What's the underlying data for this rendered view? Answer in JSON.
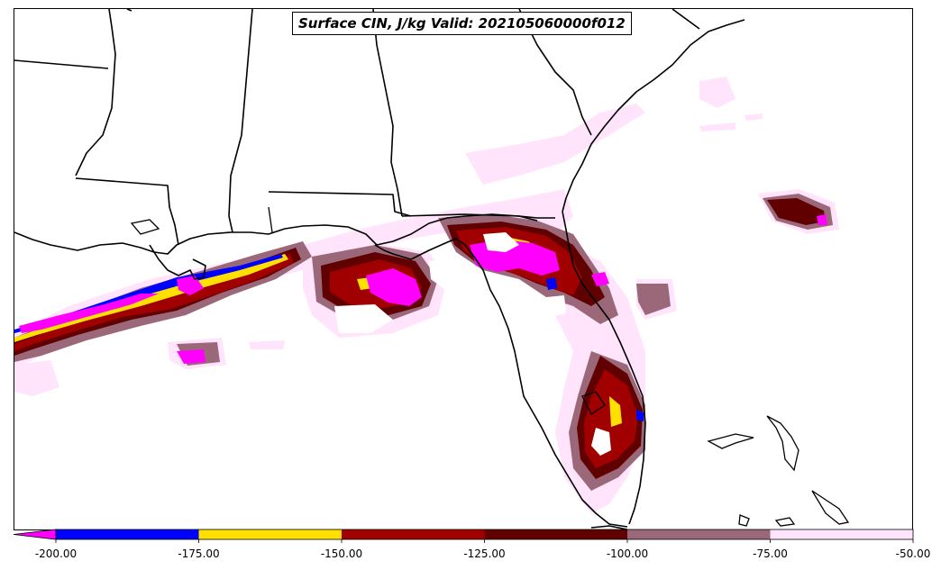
{
  "title": "Surface CIN, J/kg Valid: 202105060000f012",
  "colorbar": {
    "extend": "min",
    "extend_color": "#ff00ff",
    "bands": [
      {
        "from": -200,
        "to": -175,
        "color": "#0000ff"
      },
      {
        "from": -175,
        "to": -150,
        "color": "#ffe000"
      },
      {
        "from": -150,
        "to": -125,
        "color": "#a00000"
      },
      {
        "from": -125,
        "to": -100,
        "color": "#600000"
      },
      {
        "from": -100,
        "to": -75,
        "color": "#9a6878"
      },
      {
        "from": -75,
        "to": -50,
        "color": "#ffe4fb"
      }
    ],
    "tick_labels": [
      "-200.00",
      "-175.00",
      "-150.00",
      "-125.00",
      "-100.00",
      "-75.00",
      "-50.00"
    ]
  },
  "legend": {
    "fill_colors": {
      "below_-200": "#ff00ff",
      "-200_to_-175": "#0000ff",
      "-175_to_-150": "#ffe000",
      "-150_to_-125": "#a00000",
      "-125_to_-100": "#600000",
      "-100_to_-75": "#9a6878",
      "-75_to_-50": "#ffe4fb"
    },
    "boundary_color": "#000000"
  }
}
